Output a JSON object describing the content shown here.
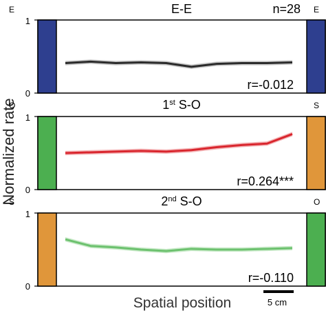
{
  "figure": {
    "ylabel": "Normalized rate",
    "xlabel": "Spatial position",
    "scalebar_label": "5 cm"
  },
  "colors": {
    "E": "#2e3f8f",
    "O": "#4caf50",
    "S": "#e0963a",
    "line_ee": "#2b2b2b",
    "band_ee": "#bdbdbd",
    "line_s1": "#d9262e",
    "band_s1": "#f2a9ab",
    "line_s2": "#6cc16e",
    "band_s2": "#bfe6c0"
  },
  "chart_data": [
    {
      "type": "line",
      "title": "E-E",
      "title_main": "E-E",
      "title_sup": "",
      "title_suffix": "",
      "n_label": "n=28",
      "left_marker": "E",
      "right_marker": "E",
      "left_color_key": "E",
      "right_color_key": "E",
      "line_color_key": "line_ee",
      "band_color_key": "band_ee",
      "ylim": [
        0,
        1
      ],
      "yticks": [
        "0",
        "1"
      ],
      "r_label": "r=-0.012",
      "x": [
        1,
        2,
        3,
        4,
        5,
        6,
        7,
        8,
        9,
        10
      ],
      "values": [
        0.41,
        0.43,
        0.41,
        0.42,
        0.41,
        0.36,
        0.4,
        0.41,
        0.41,
        0.42
      ],
      "band": 0.03
    },
    {
      "type": "line",
      "title": "1st S-O",
      "title_main": "1",
      "title_sup": "st",
      "title_suffix": " S-O",
      "n_label": "",
      "left_marker": "O",
      "right_marker": "S",
      "left_color_key": "O",
      "right_color_key": "S",
      "line_color_key": "line_s1",
      "band_color_key": "band_s1",
      "ylim": [
        0,
        1
      ],
      "yticks": [
        "0",
        "1"
      ],
      "r_label": "r=0.264***",
      "x": [
        1,
        2,
        3,
        4,
        5,
        6,
        7,
        8,
        9,
        10
      ],
      "values": [
        0.5,
        0.51,
        0.52,
        0.53,
        0.52,
        0.54,
        0.58,
        0.61,
        0.63,
        0.76
      ],
      "band": 0.03
    },
    {
      "type": "line",
      "title": "2nd S-O",
      "title_main": "2",
      "title_sup": "nd",
      "title_suffix": " S-O",
      "n_label": "",
      "left_marker": "S",
      "right_marker": "O",
      "left_color_key": "S",
      "right_color_key": "O",
      "line_color_key": "line_s2",
      "band_color_key": "band_s2",
      "ylim": [
        0,
        1
      ],
      "yticks": [
        "0",
        "1"
      ],
      "r_label": "r=-0.110",
      "x": [
        1,
        2,
        3,
        4,
        5,
        6,
        7,
        8,
        9,
        10
      ],
      "values": [
        0.64,
        0.55,
        0.53,
        0.5,
        0.48,
        0.51,
        0.5,
        0.5,
        0.51,
        0.52
      ],
      "band": 0.03
    }
  ]
}
